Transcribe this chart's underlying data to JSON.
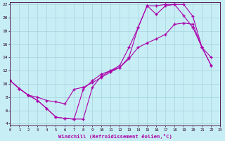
{
  "xlabel": "Windchill (Refroidissement éolien,°C)",
  "bg_color": "#c8eef5",
  "grid_color": "#a8d8e0",
  "line_color": "#aa00aa",
  "xlim": [
    0,
    23
  ],
  "ylim": [
    4,
    22
  ],
  "yticks": [
    4,
    6,
    8,
    10,
    12,
    14,
    16,
    18,
    20,
    22
  ],
  "xticks": [
    0,
    1,
    2,
    3,
    4,
    5,
    6,
    7,
    8,
    9,
    10,
    11,
    12,
    13,
    14,
    15,
    16,
    17,
    18,
    19,
    20,
    21,
    22,
    23
  ],
  "series1_x": [
    0,
    1,
    2,
    3,
    4,
    5,
    6,
    7,
    8,
    9,
    10,
    11,
    12,
    13,
    14,
    15,
    16,
    17,
    18,
    19,
    20,
    21,
    22
  ],
  "series1_y": [
    10.5,
    9.3,
    8.3,
    7.5,
    6.3,
    5.0,
    4.8,
    4.7,
    4.7,
    9.5,
    11.2,
    12.0,
    12.5,
    14.0,
    18.5,
    21.8,
    20.5,
    21.8,
    22.0,
    20.3,
    18.5,
    15.5,
    14.0
  ],
  "series2_x": [
    0,
    1,
    2,
    3,
    4,
    5,
    6,
    7,
    8,
    9,
    10,
    11,
    12,
    13,
    14,
    15,
    16,
    17,
    18,
    19,
    20,
    21,
    22
  ],
  "series2_y": [
    10.5,
    9.3,
    8.3,
    8.0,
    7.5,
    7.3,
    7.0,
    9.2,
    9.5,
    10.2,
    11.0,
    11.8,
    12.5,
    13.8,
    15.5,
    16.2,
    16.8,
    17.5,
    19.0,
    19.2,
    19.0,
    15.5,
    12.8
  ],
  "series3_x": [
    0,
    1,
    2,
    3,
    4,
    5,
    6,
    7,
    8,
    9,
    10,
    11,
    12,
    13,
    14,
    15,
    16,
    17,
    18,
    19,
    20,
    21,
    22
  ],
  "series3_y": [
    10.5,
    9.3,
    8.3,
    7.5,
    6.3,
    5.0,
    4.8,
    4.7,
    9.2,
    10.5,
    11.5,
    12.0,
    12.8,
    15.5,
    18.5,
    21.8,
    21.8,
    22.0,
    22.0,
    22.0,
    20.2,
    15.5,
    12.8
  ]
}
